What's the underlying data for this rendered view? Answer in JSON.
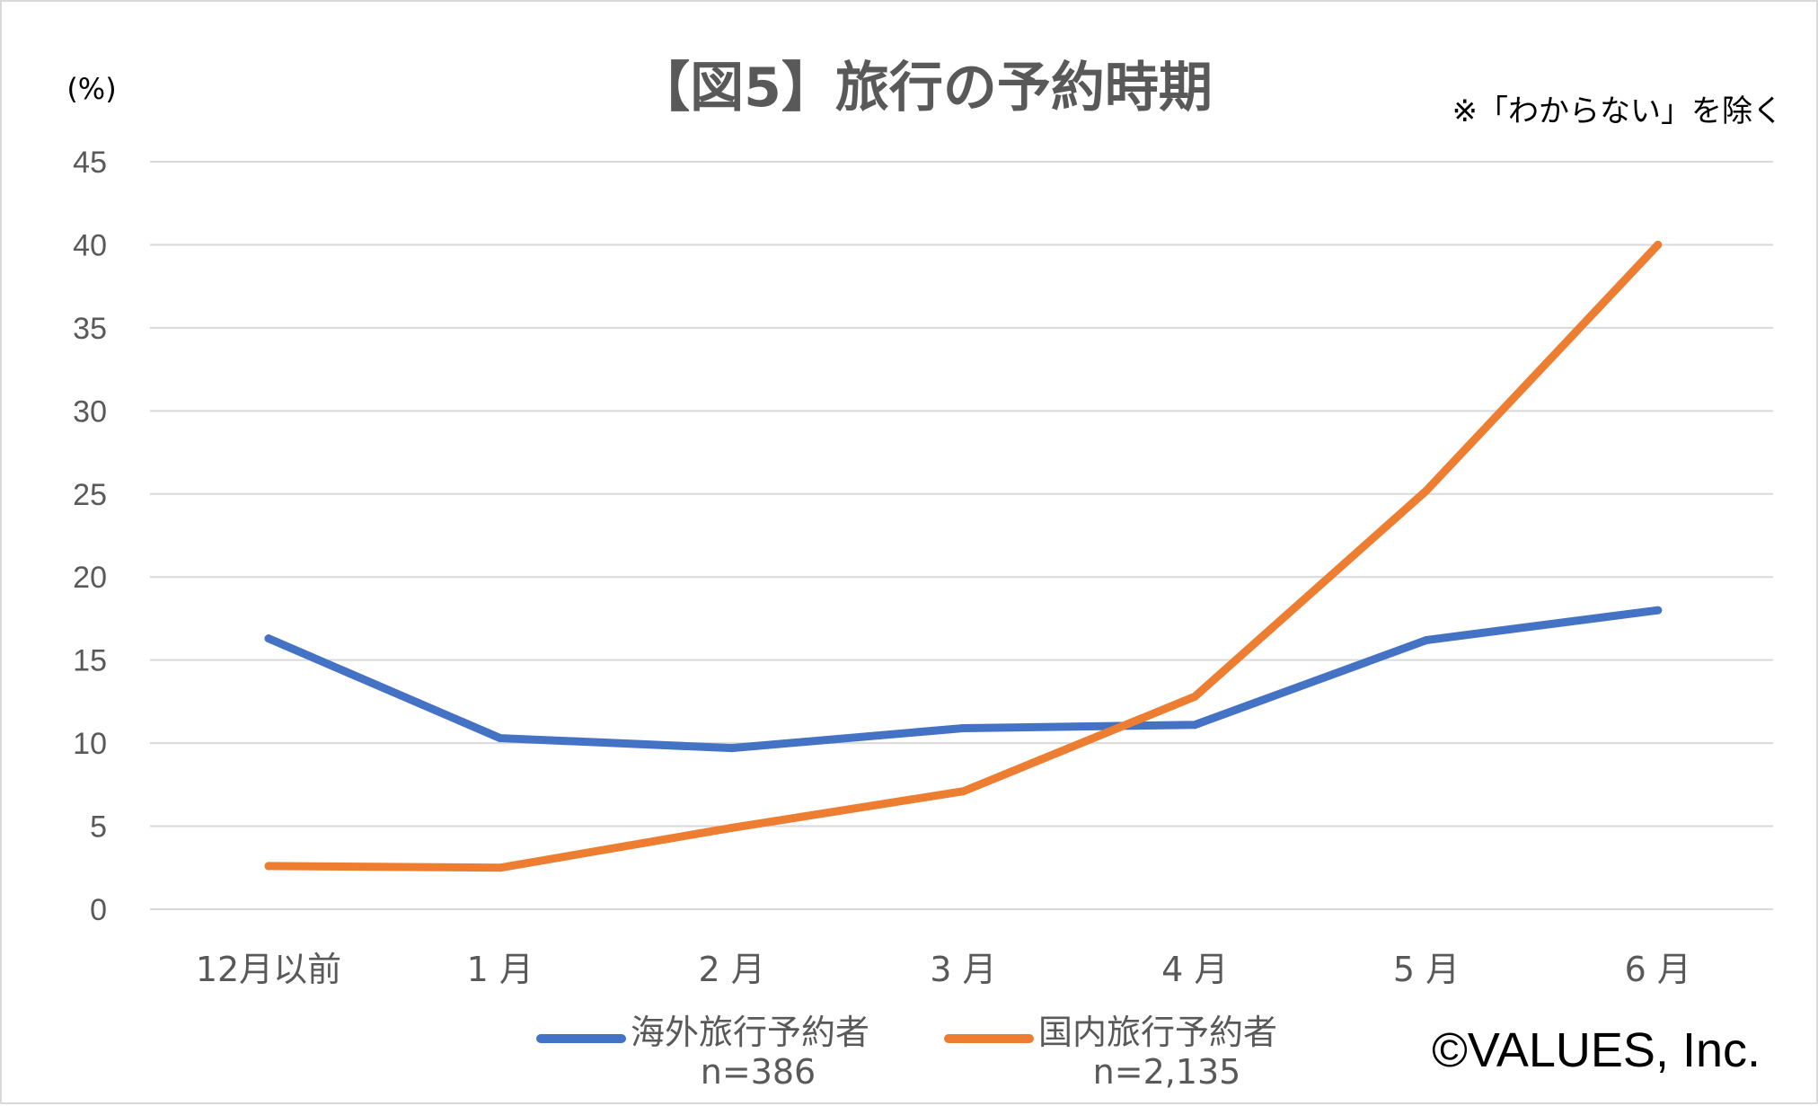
{
  "chart_data": {
    "type": "line",
    "title": "【図5】旅行の予約時期",
    "note": "※「わからない」を除く",
    "ylabel": "(%)",
    "ylim": [
      0,
      45
    ],
    "yticks": [
      0,
      5,
      10,
      15,
      20,
      25,
      30,
      35,
      40,
      45
    ],
    "grid": true,
    "categories": [
      "12月以前",
      "1 月",
      "2 月",
      "3 月",
      "4 月",
      "5 月",
      "6 月"
    ],
    "legend_position": "bottom",
    "series": [
      {
        "name": "海外旅行予約者",
        "sample": "n=386",
        "color": "#4472C4",
        "values": [
          16.3,
          10.3,
          9.7,
          10.9,
          11.1,
          16.2,
          18.0
        ]
      },
      {
        "name": "国内旅行予約者",
        "sample": "n=2,135",
        "color": "#ED7D31",
        "values": [
          2.6,
          2.5,
          4.9,
          7.1,
          12.8,
          25.2,
          40.0
        ]
      }
    ],
    "copyright": "©VALUES, Inc."
  }
}
